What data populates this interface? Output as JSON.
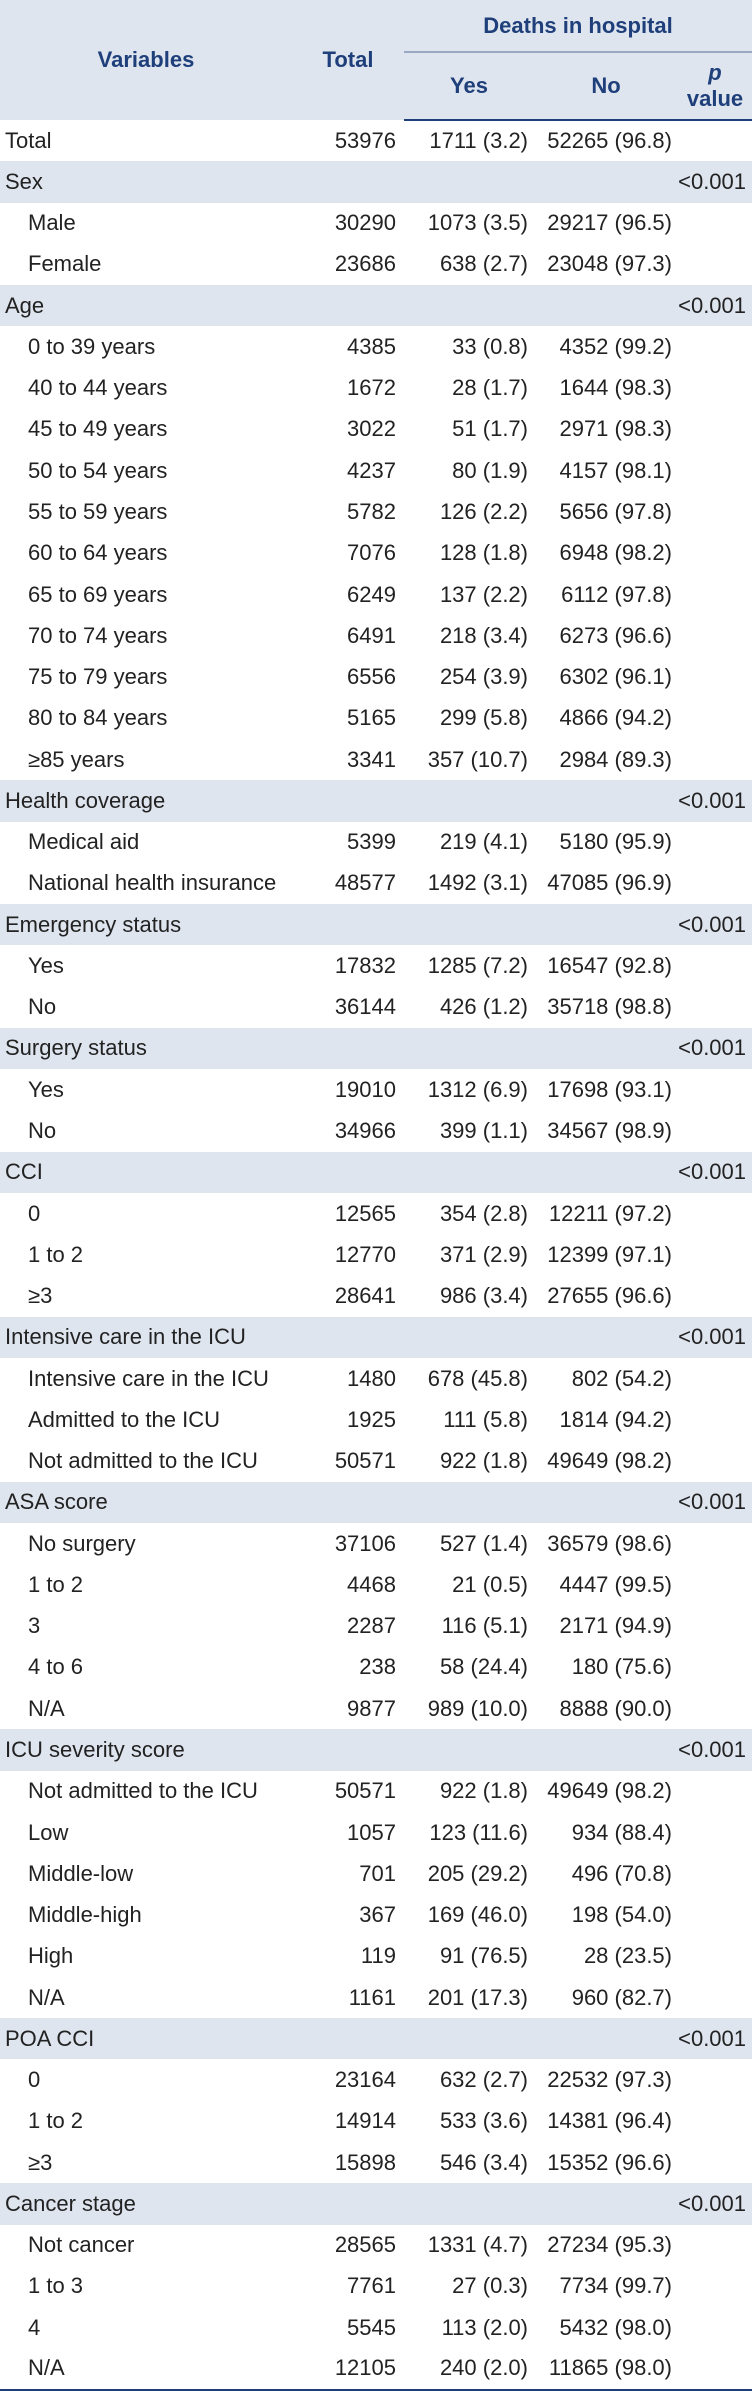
{
  "header": {
    "variables": "Variables",
    "total": "Total",
    "deaths_group": "Deaths in hospital",
    "yes": "Yes",
    "no": "No",
    "p_letter": "p",
    "p_word": "value"
  },
  "rows": [
    {
      "type": "total",
      "label": "Total",
      "total": "53976",
      "yes": "1711 (3.2)",
      "no": "52265 (96.8)",
      "p": ""
    },
    {
      "type": "cat",
      "label": "Sex",
      "total": "",
      "yes": "",
      "no": "",
      "p": "<0.001"
    },
    {
      "type": "sub",
      "label": "Male",
      "total": "30290",
      "yes": "1073 (3.5)",
      "no": "29217 (96.5)",
      "p": ""
    },
    {
      "type": "sub",
      "label": "Female",
      "total": "23686",
      "yes": "638 (2.7)",
      "no": "23048 (97.3)",
      "p": ""
    },
    {
      "type": "cat",
      "label": "Age",
      "total": "",
      "yes": "",
      "no": "",
      "p": "<0.001"
    },
    {
      "type": "sub",
      "label": "0 to 39 years",
      "total": "4385",
      "yes": "33 (0.8)",
      "no": "4352 (99.2)",
      "p": ""
    },
    {
      "type": "sub",
      "label": "40 to 44 years",
      "total": "1672",
      "yes": "28 (1.7)",
      "no": "1644 (98.3)",
      "p": ""
    },
    {
      "type": "sub",
      "label": "45 to 49 years",
      "total": "3022",
      "yes": "51 (1.7)",
      "no": "2971 (98.3)",
      "p": ""
    },
    {
      "type": "sub",
      "label": "50 to 54 years",
      "total": "4237",
      "yes": "80 (1.9)",
      "no": "4157 (98.1)",
      "p": ""
    },
    {
      "type": "sub",
      "label": "55 to 59 years",
      "total": "5782",
      "yes": "126 (2.2)",
      "no": "5656 (97.8)",
      "p": ""
    },
    {
      "type": "sub",
      "label": "60 to 64 years",
      "total": "7076",
      "yes": "128 (1.8)",
      "no": "6948 (98.2)",
      "p": ""
    },
    {
      "type": "sub",
      "label": "65 to 69 years",
      "total": "6249",
      "yes": "137 (2.2)",
      "no": "6112 (97.8)",
      "p": ""
    },
    {
      "type": "sub",
      "label": "70 to 74 years",
      "total": "6491",
      "yes": "218 (3.4)",
      "no": "6273 (96.6)",
      "p": ""
    },
    {
      "type": "sub",
      "label": "75 to 79 years",
      "total": "6556",
      "yes": "254 (3.9)",
      "no": "6302 (96.1)",
      "p": ""
    },
    {
      "type": "sub",
      "label": "80 to 84 years",
      "total": "5165",
      "yes": "299 (5.8)",
      "no": "4866 (94.2)",
      "p": ""
    },
    {
      "type": "sub",
      "label": "≥85 years",
      "total": "3341",
      "yes": "357 (10.7)",
      "no": "2984 (89.3)",
      "p": ""
    },
    {
      "type": "cat",
      "label": "Health coverage",
      "total": "",
      "yes": "",
      "no": "",
      "p": "<0.001"
    },
    {
      "type": "sub",
      "label": "Medical aid",
      "total": "5399",
      "yes": "219 (4.1)",
      "no": "5180 (95.9)",
      "p": ""
    },
    {
      "type": "sub",
      "label": "National health insurance",
      "total": "48577",
      "yes": "1492 (3.1)",
      "no": "47085 (96.9)",
      "p": ""
    },
    {
      "type": "cat",
      "label": "Emergency status",
      "total": "",
      "yes": "",
      "no": "",
      "p": "<0.001"
    },
    {
      "type": "sub",
      "label": "Yes",
      "total": "17832",
      "yes": "1285 (7.2)",
      "no": "16547 (92.8)",
      "p": ""
    },
    {
      "type": "sub",
      "label": "No",
      "total": "36144",
      "yes": "426 (1.2)",
      "no": "35718 (98.8)",
      "p": ""
    },
    {
      "type": "cat",
      "label": "Surgery status",
      "total": "",
      "yes": "",
      "no": "",
      "p": "<0.001"
    },
    {
      "type": "sub",
      "label": "Yes",
      "total": "19010",
      "yes": "1312 (6.9)",
      "no": "17698 (93.1)",
      "p": ""
    },
    {
      "type": "sub",
      "label": "No",
      "total": "34966",
      "yes": "399 (1.1)",
      "no": "34567 (98.9)",
      "p": ""
    },
    {
      "type": "cat",
      "label": "CCI",
      "total": "",
      "yes": "",
      "no": "",
      "p": "<0.001"
    },
    {
      "type": "sub",
      "label": "0",
      "total": "12565",
      "yes": "354 (2.8)",
      "no": "12211 (97.2)",
      "p": ""
    },
    {
      "type": "sub",
      "label": "1 to 2",
      "total": "12770",
      "yes": "371 (2.9)",
      "no": "12399 (97.1)",
      "p": ""
    },
    {
      "type": "sub",
      "label": "≥3",
      "total": "28641",
      "yes": "986 (3.4)",
      "no": "27655 (96.6)",
      "p": ""
    },
    {
      "type": "cat",
      "label": "Intensive care in the ICU",
      "total": "",
      "yes": "",
      "no": "",
      "p": "<0.001"
    },
    {
      "type": "sub",
      "label": "Intensive care in the ICU",
      "total": "1480",
      "yes": "678 (45.8)",
      "no": "802 (54.2)",
      "p": ""
    },
    {
      "type": "sub",
      "label": "Admitted to the ICU",
      "total": "1925",
      "yes": "111 (5.8)",
      "no": "1814 (94.2)",
      "p": ""
    },
    {
      "type": "sub",
      "label": "Not admitted to the ICU",
      "total": "50571",
      "yes": "922 (1.8)",
      "no": "49649 (98.2)",
      "p": ""
    },
    {
      "type": "cat",
      "label": "ASA score",
      "total": "",
      "yes": "",
      "no": "",
      "p": "<0.001"
    },
    {
      "type": "sub",
      "label": "No surgery",
      "total": "37106",
      "yes": "527 (1.4)",
      "no": "36579 (98.6)",
      "p": ""
    },
    {
      "type": "sub",
      "label": "1 to 2",
      "total": "4468",
      "yes": "21 (0.5)",
      "no": "4447 (99.5)",
      "p": ""
    },
    {
      "type": "sub",
      "label": "3",
      "total": "2287",
      "yes": "116 (5.1)",
      "no": "2171 (94.9)",
      "p": ""
    },
    {
      "type": "sub",
      "label": "4 to 6",
      "total": "238",
      "yes": "58 (24.4)",
      "no": "180 (75.6)",
      "p": ""
    },
    {
      "type": "sub",
      "label": "N/A",
      "total": "9877",
      "yes": "989 (10.0)",
      "no": "8888 (90.0)",
      "p": ""
    },
    {
      "type": "cat",
      "label": "ICU severity score",
      "total": "",
      "yes": "",
      "no": "",
      "p": "<0.001"
    },
    {
      "type": "sub",
      "label": "Not admitted to the ICU",
      "total": "50571",
      "yes": "922 (1.8)",
      "no": "49649 (98.2)",
      "p": ""
    },
    {
      "type": "sub",
      "label": "Low",
      "total": "1057",
      "yes": "123 (11.6)",
      "no": "934 (88.4)",
      "p": ""
    },
    {
      "type": "sub",
      "label": "Middle-low",
      "total": "701",
      "yes": "205 (29.2)",
      "no": "496 (70.8)",
      "p": ""
    },
    {
      "type": "sub",
      "label": "Middle-high",
      "total": "367",
      "yes": "169 (46.0)",
      "no": "198 (54.0)",
      "p": ""
    },
    {
      "type": "sub",
      "label": "High",
      "total": "119",
      "yes": "91 (76.5)",
      "no": "28 (23.5)",
      "p": ""
    },
    {
      "type": "sub",
      "label": "N/A",
      "total": "1161",
      "yes": "201 (17.3)",
      "no": "960 (82.7)",
      "p": ""
    },
    {
      "type": "cat",
      "label": "POA CCI",
      "total": "",
      "yes": "",
      "no": "",
      "p": "<0.001"
    },
    {
      "type": "sub",
      "label": "0",
      "total": "23164",
      "yes": "632 (2.7)",
      "no": "22532 (97.3)",
      "p": ""
    },
    {
      "type": "sub",
      "label": "1 to 2",
      "total": "14914",
      "yes": "533 (3.6)",
      "no": "14381 (96.4)",
      "p": ""
    },
    {
      "type": "sub",
      "label": "≥3",
      "total": "15898",
      "yes": "546 (3.4)",
      "no": "15352 (96.6)",
      "p": ""
    },
    {
      "type": "cat",
      "label": "Cancer stage",
      "total": "",
      "yes": "",
      "no": "",
      "p": "<0.001"
    },
    {
      "type": "sub",
      "label": "Not cancer",
      "total": "28565",
      "yes": "1331 (4.7)",
      "no": "27234 (95.3)",
      "p": ""
    },
    {
      "type": "sub",
      "label": "1 to 3",
      "total": "7761",
      "yes": "27 (0.3)",
      "no": "7734 (99.7)",
      "p": ""
    },
    {
      "type": "sub",
      "label": "4",
      "total": "5545",
      "yes": "113 (2.0)",
      "no": "5432 (98.0)",
      "p": ""
    },
    {
      "type": "sub",
      "label": "N/A",
      "total": "12105",
      "yes": "240 (2.0)",
      "no": "11865 (98.0)",
      "p": ""
    }
  ]
}
